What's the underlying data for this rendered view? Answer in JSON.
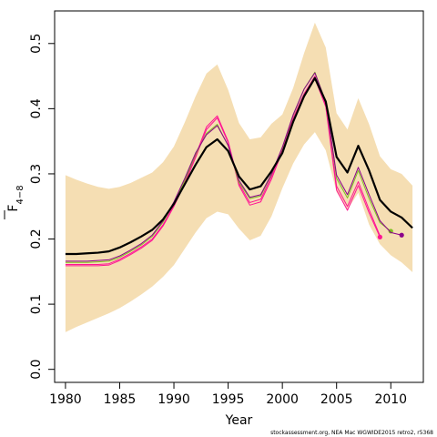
{
  "chart_data": {
    "type": "line",
    "title": "",
    "xlabel": "Year",
    "ylabel_main": "F",
    "ylabel_sub": "4−8",
    "xlim": [
      1979,
      2013
    ],
    "ylim": [
      -0.02,
      0.55
    ],
    "x_ticks": [
      1980,
      1985,
      1990,
      1995,
      2000,
      2005,
      2010
    ],
    "y_ticks": [
      0.0,
      0.1,
      0.2,
      0.3,
      0.4,
      0.5
    ],
    "y_tick_labels": [
      "0.0",
      "0.1",
      "0.2",
      "0.3",
      "0.4",
      "0.5"
    ],
    "grid": false,
    "footer": "stockassessment.org, NEA Mac WGWIDE2015 retro2, r5368",
    "confidence_band": {
      "color": "#f5deb3",
      "x": [
        1980,
        1981,
        1982,
        1983,
        1984,
        1985,
        1986,
        1987,
        1988,
        1989,
        1990,
        1991,
        1992,
        1993,
        1994,
        1995,
        1996,
        1997,
        1998,
        1999,
        2000,
        2001,
        2002,
        2003,
        2004,
        2005,
        2006,
        2007,
        2008,
        2009,
        2010,
        2011,
        2012
      ],
      "lower": [
        0.057,
        0.065,
        0.072,
        0.079,
        0.086,
        0.094,
        0.104,
        0.115,
        0.127,
        0.142,
        0.16,
        0.185,
        0.21,
        0.232,
        0.242,
        0.238,
        0.216,
        0.198,
        0.205,
        0.235,
        0.278,
        0.316,
        0.345,
        0.364,
        0.336,
        0.272,
        0.245,
        0.271,
        0.222,
        0.192,
        0.175,
        0.164,
        0.149
      ],
      "upper": [
        0.298,
        0.291,
        0.285,
        0.28,
        0.277,
        0.28,
        0.286,
        0.294,
        0.302,
        0.318,
        0.342,
        0.379,
        0.419,
        0.454,
        0.468,
        0.429,
        0.378,
        0.353,
        0.356,
        0.377,
        0.391,
        0.432,
        0.485,
        0.532,
        0.494,
        0.393,
        0.368,
        0.416,
        0.376,
        0.327,
        0.307,
        0.3,
        0.282
      ]
    },
    "series": [
      {
        "color": "#ff1493",
        "width": 1,
        "x": [
          1980,
          1981,
          1982,
          1983,
          1984,
          1985,
          1986,
          1987,
          1988,
          1989,
          1990,
          1991,
          1992,
          1993,
          1994,
          1995,
          1996,
          1997,
          1998,
          1999,
          2000,
          2001,
          2002,
          2003,
          2004,
          2005,
          2006,
          2007,
          2008,
          2009
        ],
        "y": [
          0.159,
          0.159,
          0.159,
          0.159,
          0.16,
          0.167,
          0.176,
          0.186,
          0.198,
          0.22,
          0.25,
          0.285,
          0.325,
          0.368,
          0.386,
          0.348,
          0.282,
          0.252,
          0.257,
          0.292,
          0.335,
          0.382,
          0.418,
          0.446,
          0.403,
          0.275,
          0.244,
          0.282,
          0.24,
          0.203
        ],
        "end_marker": true
      },
      {
        "color": "#ff1493",
        "width": 1,
        "x": [
          1980,
          1981,
          1982,
          1983,
          1984,
          1985,
          1986,
          1987,
          1988,
          1989,
          1990,
          1991,
          1992,
          1993,
          1994,
          1995,
          1996,
          1997,
          1998,
          1999,
          2000,
          2001,
          2002,
          2003,
          2004,
          2005,
          2006,
          2007,
          2008,
          2009
        ],
        "y": [
          0.161,
          0.161,
          0.161,
          0.161,
          0.162,
          0.169,
          0.178,
          0.188,
          0.2,
          0.222,
          0.252,
          0.287,
          0.328,
          0.372,
          0.389,
          0.35,
          0.285,
          0.256,
          0.261,
          0.296,
          0.338,
          0.386,
          0.423,
          0.45,
          0.406,
          0.281,
          0.25,
          0.288,
          0.245,
          0.205
        ],
        "end_marker": false
      },
      {
        "color": "#7cc11e",
        "width": 1,
        "x": [
          1980,
          1981,
          1982,
          1983,
          1984,
          1985,
          1986,
          1987,
          1988,
          1989,
          1990,
          1991,
          1992,
          1993,
          1994,
          1995,
          1996,
          1997,
          1998,
          1999,
          2000,
          2001,
          2002,
          2003,
          2004,
          2005,
          2006,
          2007,
          2008,
          2009,
          2010
        ],
        "y": [
          0.164,
          0.164,
          0.164,
          0.165,
          0.166,
          0.172,
          0.181,
          0.191,
          0.204,
          0.226,
          0.255,
          0.29,
          0.33,
          0.362,
          0.376,
          0.343,
          0.287,
          0.262,
          0.266,
          0.299,
          0.34,
          0.39,
          0.43,
          0.456,
          0.411,
          0.293,
          0.263,
          0.305,
          0.262,
          0.225,
          0.212
        ],
        "end_marker": true
      },
      {
        "color": "#8b008b",
        "width": 1,
        "x": [
          1980,
          1981,
          1982,
          1983,
          1984,
          1985,
          1986,
          1987,
          1988,
          1989,
          1990,
          1991,
          1992,
          1993,
          1994,
          1995,
          1996,
          1997,
          1998,
          1999,
          2000,
          2001,
          2002,
          2003,
          2004,
          2005,
          2006,
          2007,
          2008,
          2009,
          2010,
          2011
        ],
        "y": [
          0.166,
          0.166,
          0.166,
          0.167,
          0.168,
          0.174,
          0.183,
          0.193,
          0.206,
          0.228,
          0.257,
          0.293,
          0.332,
          0.36,
          0.374,
          0.344,
          0.29,
          0.264,
          0.268,
          0.3,
          0.341,
          0.391,
          0.43,
          0.455,
          0.411,
          0.298,
          0.268,
          0.31,
          0.268,
          0.228,
          0.21,
          0.206
        ],
        "end_marker": true
      },
      {
        "color": "#000000",
        "width": 2.2,
        "x": [
          1980,
          1981,
          1982,
          1983,
          1984,
          1985,
          1986,
          1987,
          1988,
          1989,
          1990,
          1991,
          1992,
          1993,
          1994,
          1995,
          1996,
          1997,
          1998,
          1999,
          2000,
          2001,
          2002,
          2003,
          2004,
          2005,
          2006,
          2007,
          2008,
          2009,
          2010,
          2011,
          2012
        ],
        "y": [
          0.177,
          0.177,
          0.178,
          0.179,
          0.181,
          0.187,
          0.195,
          0.204,
          0.214,
          0.23,
          0.254,
          0.284,
          0.314,
          0.341,
          0.353,
          0.335,
          0.296,
          0.276,
          0.281,
          0.304,
          0.332,
          0.38,
          0.419,
          0.447,
          0.411,
          0.326,
          0.302,
          0.343,
          0.305,
          0.26,
          0.242,
          0.233,
          0.217
        ],
        "end_marker": false
      }
    ]
  }
}
